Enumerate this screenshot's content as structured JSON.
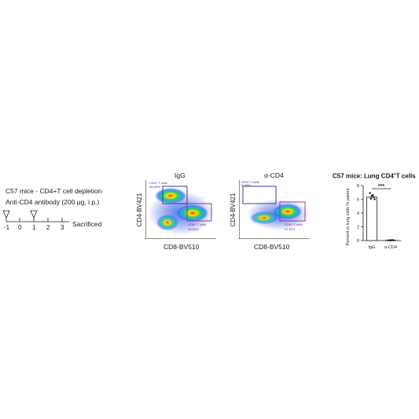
{
  "timeline": {
    "title": "C57 mice - CD4+T cell depletion",
    "treatment": "Anti-CD4 antibody (200 μg, i.p.)",
    "days": [
      "-1",
      "0",
      "1",
      "2",
      "3"
    ],
    "endpoint": "Sacrificed"
  },
  "flow_igg": {
    "title": "IgG",
    "y_axis": "CD4-BV421",
    "x_axis": "CD8-BV510",
    "gate_cd4_label": "CD4+ T cells",
    "gate_cd4_value": "49.50%",
    "gate_cd8_label": "CD8+ T cells",
    "gate_cd8_value": "35.84%"
  },
  "flow_acd4": {
    "title": "α-CD4",
    "y_axis": "CD4-BV421",
    "x_axis": "CD8-BV510",
    "gate_cd4_label": "CD4+ T cells",
    "gate_cd4_value": "0.08%",
    "gate_cd8_label": "CD8+ T cells",
    "gate_cd8_value": "91.62%"
  },
  "colors": {
    "gate_cd4": "#2a2a8c",
    "gate_cd8": "#8a2a8a",
    "axis": "#1a1a1a"
  },
  "chart_data": {
    "type": "bar",
    "title": "C57 mice: Lung CD4",
    "title_sup": "+",
    "title_end": "T cells",
    "ylabel": "Percent in lung cells  % parent",
    "categories": [
      "IgG",
      "α-CD4"
    ],
    "values": [
      6.3,
      0.05
    ],
    "points": [
      [
        6.9,
        6.5,
        6.3,
        6.1,
        6.6,
        6.0
      ],
      [
        0.05,
        0.03,
        0.06,
        0.04,
        0.05,
        0.04
      ]
    ],
    "yticks": [
      "0",
      "2",
      "4",
      "6",
      "8"
    ],
    "ylim": [
      0,
      8
    ],
    "significance": "***"
  }
}
